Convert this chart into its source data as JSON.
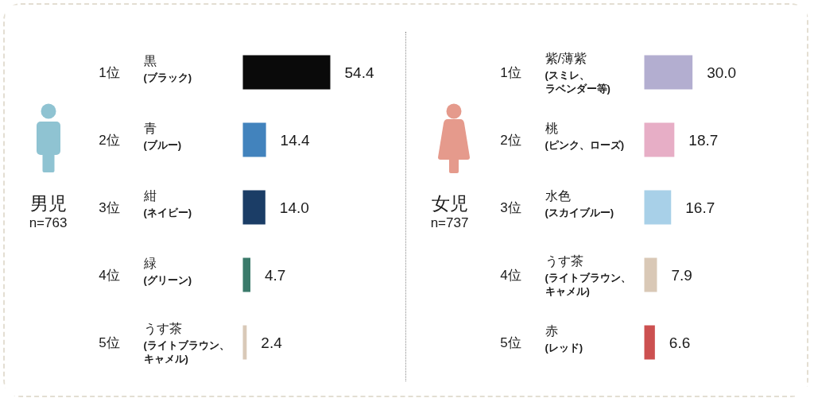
{
  "chart_data": [
    {
      "type": "bar",
      "orientation": "horizontal",
      "title": "男児",
      "subtitle": "n=763",
      "categories": [
        "黒\n(ブラック)",
        "青\n(ブルー)",
        "紺\n(ネイビー)",
        "緑\n(グリーン)",
        "うす茶\n(ライトブラウン、キャメル)"
      ],
      "values": [
        54.4,
        14.4,
        14.0,
        4.7,
        2.4
      ],
      "value_labels": [
        "54.4",
        "14.4",
        "14.0",
        "4.7",
        "2.4"
      ],
      "colors": [
        "#0a0a0a",
        "#4283bd",
        "#1b3d66",
        "#3a7a6a",
        "#d9c9b8"
      ],
      "annotations": [
        "1位",
        "2位",
        "3位",
        "4位",
        "5位"
      ]
    },
    {
      "type": "bar",
      "orientation": "horizontal",
      "title": "女児",
      "subtitle": "n=737",
      "categories": [
        "紫/薄紫\n(スミレ、ラベンダー等)",
        "桃\n(ピンク、ローズ)",
        "水色\n(スカイブルー)",
        "うす茶\n(ライトブラウン、キャメル)",
        "赤\n(レッド)"
      ],
      "values": [
        30.0,
        18.7,
        16.7,
        7.9,
        6.6
      ],
      "value_labels": [
        "30.0",
        "18.7",
        "16.7",
        "7.9",
        "6.6"
      ],
      "colors": [
        "#b3aed0",
        "#e7aec6",
        "#a8d0e8",
        "#d9c8b6",
        "#cc5050"
      ],
      "annotations": [
        "1位",
        "2位",
        "3位",
        "4位",
        "5位"
      ]
    }
  ]
}
